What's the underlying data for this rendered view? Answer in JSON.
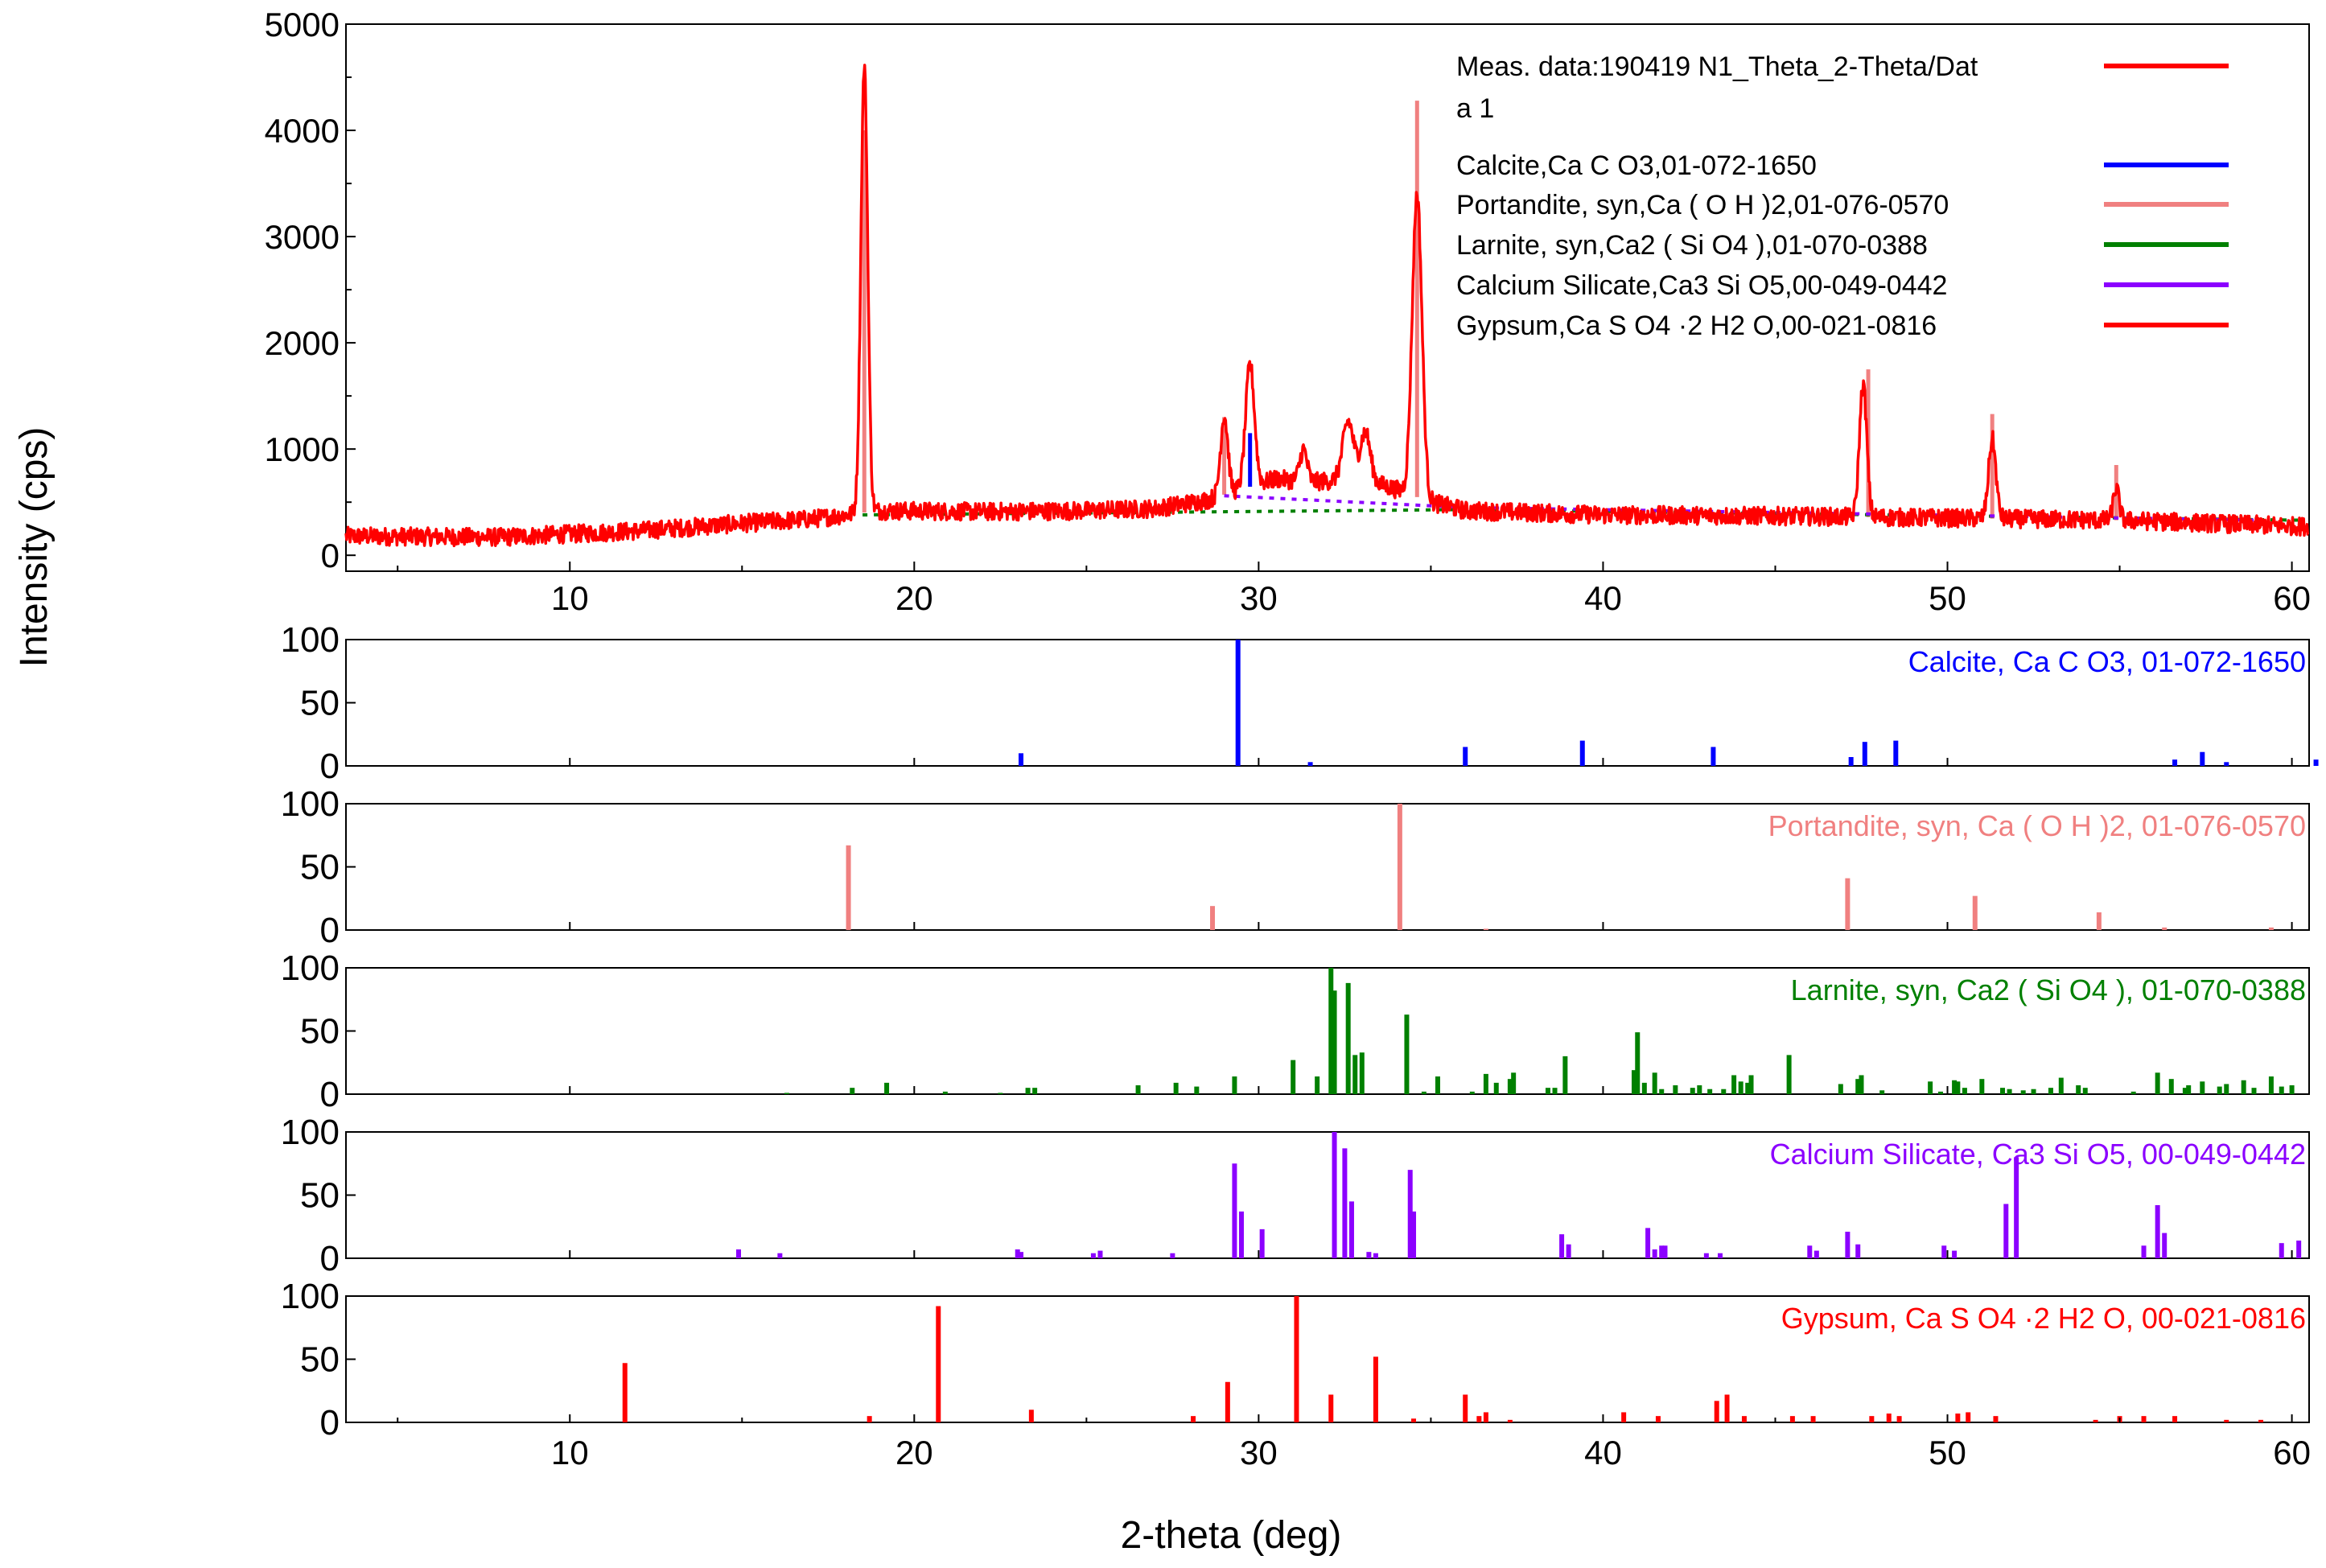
{
  "chart_data": {
    "type": "line",
    "xlabel": "2-theta (deg)",
    "ylabel": "Intensity (cps)",
    "xlim": [
      3.5,
      60.5
    ],
    "xticks": [
      "10",
      "20",
      "30",
      "40",
      "50",
      "60"
    ],
    "main": {
      "ylim": [
        -150,
        5000
      ],
      "yticks": [
        "0",
        "1000",
        "2000",
        "3000",
        "4000",
        "5000"
      ],
      "measured": {
        "color": "#ff0000",
        "baseline": [
          [
            3.5,
            180
          ],
          [
            8,
            170
          ],
          [
            12,
            230
          ],
          [
            15,
            300
          ],
          [
            17,
            340
          ],
          [
            19,
            420
          ],
          [
            22,
            410
          ],
          [
            25,
            420
          ],
          [
            27,
            440
          ],
          [
            28.5,
            520
          ],
          [
            29.5,
            620
          ],
          [
            30.5,
            720
          ],
          [
            31.5,
            690
          ],
          [
            33,
            720
          ],
          [
            34,
            620
          ],
          [
            35,
            500
          ],
          [
            36,
            420
          ],
          [
            38,
            400
          ],
          [
            40,
            380
          ],
          [
            45,
            370
          ],
          [
            50,
            350
          ],
          [
            55,
            330
          ],
          [
            60.5,
            270
          ]
        ],
        "peaks": [
          [
            18.55,
            4200,
            0.14
          ],
          [
            29.0,
            750,
            0.15
          ],
          [
            29.75,
            1150,
            0.18
          ],
          [
            31.3,
            300,
            0.15
          ],
          [
            32.6,
            550,
            0.22
          ],
          [
            33.1,
            450,
            0.2
          ],
          [
            34.6,
            2850,
            0.2
          ],
          [
            47.55,
            1250,
            0.15
          ],
          [
            51.3,
            750,
            0.15
          ],
          [
            54.9,
            300,
            0.12
          ]
        ],
        "noise": 85
      },
      "phase_overlays": [
        {
          "name": "Portandite",
          "color": "#f08080",
          "peaks": [
            [
              18.55,
              4000
            ],
            [
              29.0,
              1300
            ],
            [
              34.6,
              4280
            ],
            [
              47.7,
              1750
            ],
            [
              51.3,
              1330
            ],
            [
              54.9,
              850
            ]
          ]
        },
        {
          "name": "Calcite",
          "color": "#0000ff",
          "peaks": [
            [
              29.75,
              1150
            ]
          ]
        }
      ]
    },
    "legend": [
      {
        "label": "Meas. data:190419 N1_Theta_2-Theta/Dat",
        "label2": "a 1",
        "color": "#ff0000"
      },
      {
        "label": "Calcite,Ca C O3,01-072-1650",
        "color": "#0000ff"
      },
      {
        "label": "Portandite, syn,Ca ( O H )2,01-076-0570",
        "color": "#f08080"
      },
      {
        "label": "Larnite, syn,Ca2 ( Si O4 ),01-070-0388",
        "color": "#008000"
      },
      {
        "label": "Calcium Silicate,Ca3 Si O5,00-049-0442",
        "color": "#8b00ff"
      },
      {
        "label": "Gypsum,Ca S O4 ·2 H2 O,00-021-0816",
        "color": "#ff0000"
      }
    ],
    "reference_patterns": [
      {
        "title": "Calcite, Ca C O3, 01-072-1650",
        "color": "#0000ff",
        "ylim": [
          0,
          100
        ],
        "yticks": [
          "0",
          "50",
          "100"
        ],
        "peaks": [
          [
            23.1,
            10
          ],
          [
            29.4,
            100
          ],
          [
            31.5,
            3
          ],
          [
            36.0,
            15
          ],
          [
            39.4,
            20
          ],
          [
            43.2,
            15
          ],
          [
            47.2,
            7
          ],
          [
            47.6,
            19
          ],
          [
            48.5,
            20
          ],
          [
            56.6,
            5
          ],
          [
            57.4,
            11
          ],
          [
            58.1,
            3
          ],
          [
            60.7,
            5
          ]
        ]
      },
      {
        "title": "Portandite, syn, Ca ( O H )2, 01-076-0570",
        "color": "#f08080",
        "ylim": [
          0,
          100
        ],
        "yticks": [
          "0",
          "50",
          "100"
        ],
        "peaks": [
          [
            18.09,
            67
          ],
          [
            28.66,
            19
          ],
          [
            34.1,
            100
          ],
          [
            36.6,
            1
          ],
          [
            47.1,
            41
          ],
          [
            50.8,
            27
          ],
          [
            54.4,
            14
          ],
          [
            56.3,
            2
          ],
          [
            59.4,
            2
          ]
        ]
      },
      {
        "title": "Larnite, syn, Ca2 ( Si O4 ), 01-070-0388",
        "color": "#008000",
        "ylim": [
          0,
          100
        ],
        "yticks": [
          "0",
          "50",
          "100"
        ],
        "peaks": [
          [
            16.3,
            1
          ],
          [
            18.2,
            5
          ],
          [
            19.2,
            9
          ],
          [
            20.9,
            2
          ],
          [
            22.5,
            1
          ],
          [
            23.3,
            5
          ],
          [
            23.5,
            5
          ],
          [
            26.5,
            7
          ],
          [
            27.6,
            9
          ],
          [
            28.2,
            6
          ],
          [
            29.3,
            14
          ],
          [
            31.0,
            27
          ],
          [
            31.7,
            14
          ],
          [
            32.1,
            100
          ],
          [
            32.2,
            82
          ],
          [
            32.6,
            88
          ],
          [
            32.8,
            31
          ],
          [
            33.0,
            33
          ],
          [
            34.3,
            63
          ],
          [
            34.8,
            2
          ],
          [
            35.2,
            14
          ],
          [
            36.2,
            2
          ],
          [
            36.6,
            16
          ],
          [
            36.9,
            9
          ],
          [
            37.3,
            12
          ],
          [
            37.4,
            17
          ],
          [
            38.4,
            5
          ],
          [
            38.6,
            5
          ],
          [
            38.9,
            30
          ],
          [
            40.9,
            19
          ],
          [
            41.0,
            49
          ],
          [
            41.2,
            9
          ],
          [
            41.5,
            17
          ],
          [
            41.7,
            4
          ],
          [
            42.1,
            7
          ],
          [
            42.6,
            5
          ],
          [
            42.8,
            7
          ],
          [
            43.1,
            4
          ],
          [
            43.5,
            4
          ],
          [
            43.8,
            15
          ],
          [
            44.0,
            10
          ],
          [
            44.2,
            9
          ],
          [
            44.3,
            15
          ],
          [
            45.4,
            31
          ],
          [
            46.9,
            8
          ],
          [
            47.4,
            12
          ],
          [
            47.5,
            15
          ],
          [
            48.1,
            3
          ],
          [
            49.5,
            10
          ],
          [
            49.8,
            2
          ],
          [
            50.2,
            11
          ],
          [
            50.3,
            10
          ],
          [
            50.5,
            5
          ],
          [
            51.0,
            12
          ],
          [
            51.6,
            5
          ],
          [
            51.8,
            4
          ],
          [
            52.2,
            3
          ],
          [
            52.5,
            4
          ],
          [
            53.0,
            5
          ],
          [
            53.3,
            13
          ],
          [
            53.8,
            7
          ],
          [
            54.0,
            5
          ],
          [
            55.4,
            2
          ],
          [
            56.1,
            17
          ],
          [
            56.5,
            12
          ],
          [
            56.9,
            5
          ],
          [
            57.0,
            7
          ],
          [
            57.4,
            10
          ],
          [
            57.9,
            6
          ],
          [
            58.1,
            8
          ],
          [
            58.6,
            11
          ],
          [
            58.9,
            5
          ],
          [
            59.4,
            14
          ],
          [
            59.7,
            6
          ],
          [
            60.0,
            7
          ]
        ]
      },
      {
        "title": "Calcium Silicate, Ca3 Si O5, 00-049-0442",
        "color": "#8b00ff",
        "ylim": [
          0,
          100
        ],
        "yticks": [
          "0",
          "50",
          "100"
        ],
        "peaks": [
          [
            14.9,
            7
          ],
          [
            16.1,
            4
          ],
          [
            23.0,
            7
          ],
          [
            23.1,
            5
          ],
          [
            25.2,
            4
          ],
          [
            25.4,
            6
          ],
          [
            27.5,
            4
          ],
          [
            29.3,
            75
          ],
          [
            29.5,
            37
          ],
          [
            30.1,
            23
          ],
          [
            32.2,
            100
          ],
          [
            32.5,
            87
          ],
          [
            32.7,
            45
          ],
          [
            33.2,
            5
          ],
          [
            33.4,
            4
          ],
          [
            34.4,
            70
          ],
          [
            34.5,
            37
          ],
          [
            38.8,
            19
          ],
          [
            39.0,
            11
          ],
          [
            41.3,
            24
          ],
          [
            41.5,
            7
          ],
          [
            41.7,
            10
          ],
          [
            41.8,
            10
          ],
          [
            43.0,
            4
          ],
          [
            43.4,
            4
          ],
          [
            46.0,
            10
          ],
          [
            46.2,
            6
          ],
          [
            47.1,
            21
          ],
          [
            47.4,
            11
          ],
          [
            49.9,
            10
          ],
          [
            50.2,
            6
          ],
          [
            51.7,
            43
          ],
          [
            52.0,
            80
          ],
          [
            55.7,
            10
          ],
          [
            56.1,
            42
          ],
          [
            56.3,
            20
          ],
          [
            59.7,
            12
          ],
          [
            60.2,
            14
          ]
        ]
      },
      {
        "title": "Gypsum, Ca S O4 ·2 H2 O, 00-021-0816",
        "color": "#ff0000",
        "ylim": [
          0,
          100
        ],
        "yticks": [
          "0",
          "50",
          "100"
        ],
        "peaks": [
          [
            11.6,
            47
          ],
          [
            18.7,
            5
          ],
          [
            20.7,
            92
          ],
          [
            23.4,
            10
          ],
          [
            28.1,
            5
          ],
          [
            29.1,
            32
          ],
          [
            31.1,
            100
          ],
          [
            32.1,
            22
          ],
          [
            33.4,
            52
          ],
          [
            34.5,
            3
          ],
          [
            36.0,
            22
          ],
          [
            36.4,
            5
          ],
          [
            36.6,
            8
          ],
          [
            37.3,
            2
          ],
          [
            40.6,
            8
          ],
          [
            41.6,
            5
          ],
          [
            43.3,
            17
          ],
          [
            43.6,
            22
          ],
          [
            44.1,
            5
          ],
          [
            45.5,
            5
          ],
          [
            46.1,
            5
          ],
          [
            47.8,
            5
          ],
          [
            48.3,
            7
          ],
          [
            48.6,
            5
          ],
          [
            50.3,
            7
          ],
          [
            50.6,
            8
          ],
          [
            51.4,
            5
          ],
          [
            54.3,
            2
          ],
          [
            55.0,
            5
          ],
          [
            55.7,
            5
          ],
          [
            56.6,
            5
          ],
          [
            58.1,
            2
          ],
          [
            59.1,
            2
          ]
        ]
      }
    ]
  }
}
